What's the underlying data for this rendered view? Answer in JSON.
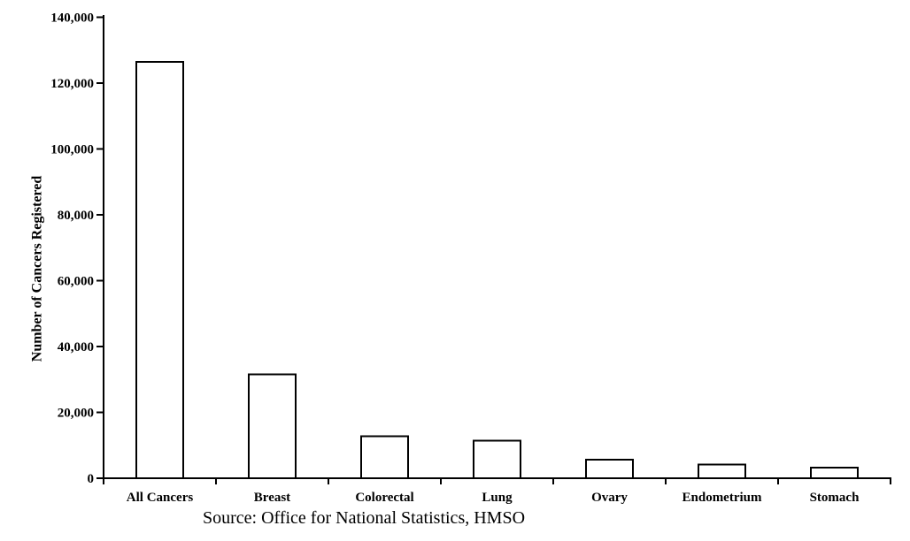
{
  "chart_data": {
    "type": "bar",
    "title": "",
    "categories": [
      "All Cancers",
      "Breast",
      "Colorectal",
      "Lung",
      "Ovary",
      "Endometrium",
      "Stomach"
    ],
    "values": [
      126500,
      31500,
      12800,
      11400,
      5600,
      4200,
      3200
    ],
    "xlabel": "",
    "ylabel": "Number of Cancers Registered",
    "source": "Source: Office for National Statistics, HMSO",
    "ylim": [
      0,
      140000
    ],
    "ytick_step": 20000,
    "ytick_labels": [
      "0",
      "20,000",
      "40,000",
      "60,000",
      "80,000",
      "100,000",
      "120,000",
      "140,000"
    ],
    "grid": false,
    "legend": "none",
    "bar_fill": "#ffffff",
    "bar_stroke": "#000000",
    "axis_color": "#000000",
    "background": "#ffffff"
  }
}
